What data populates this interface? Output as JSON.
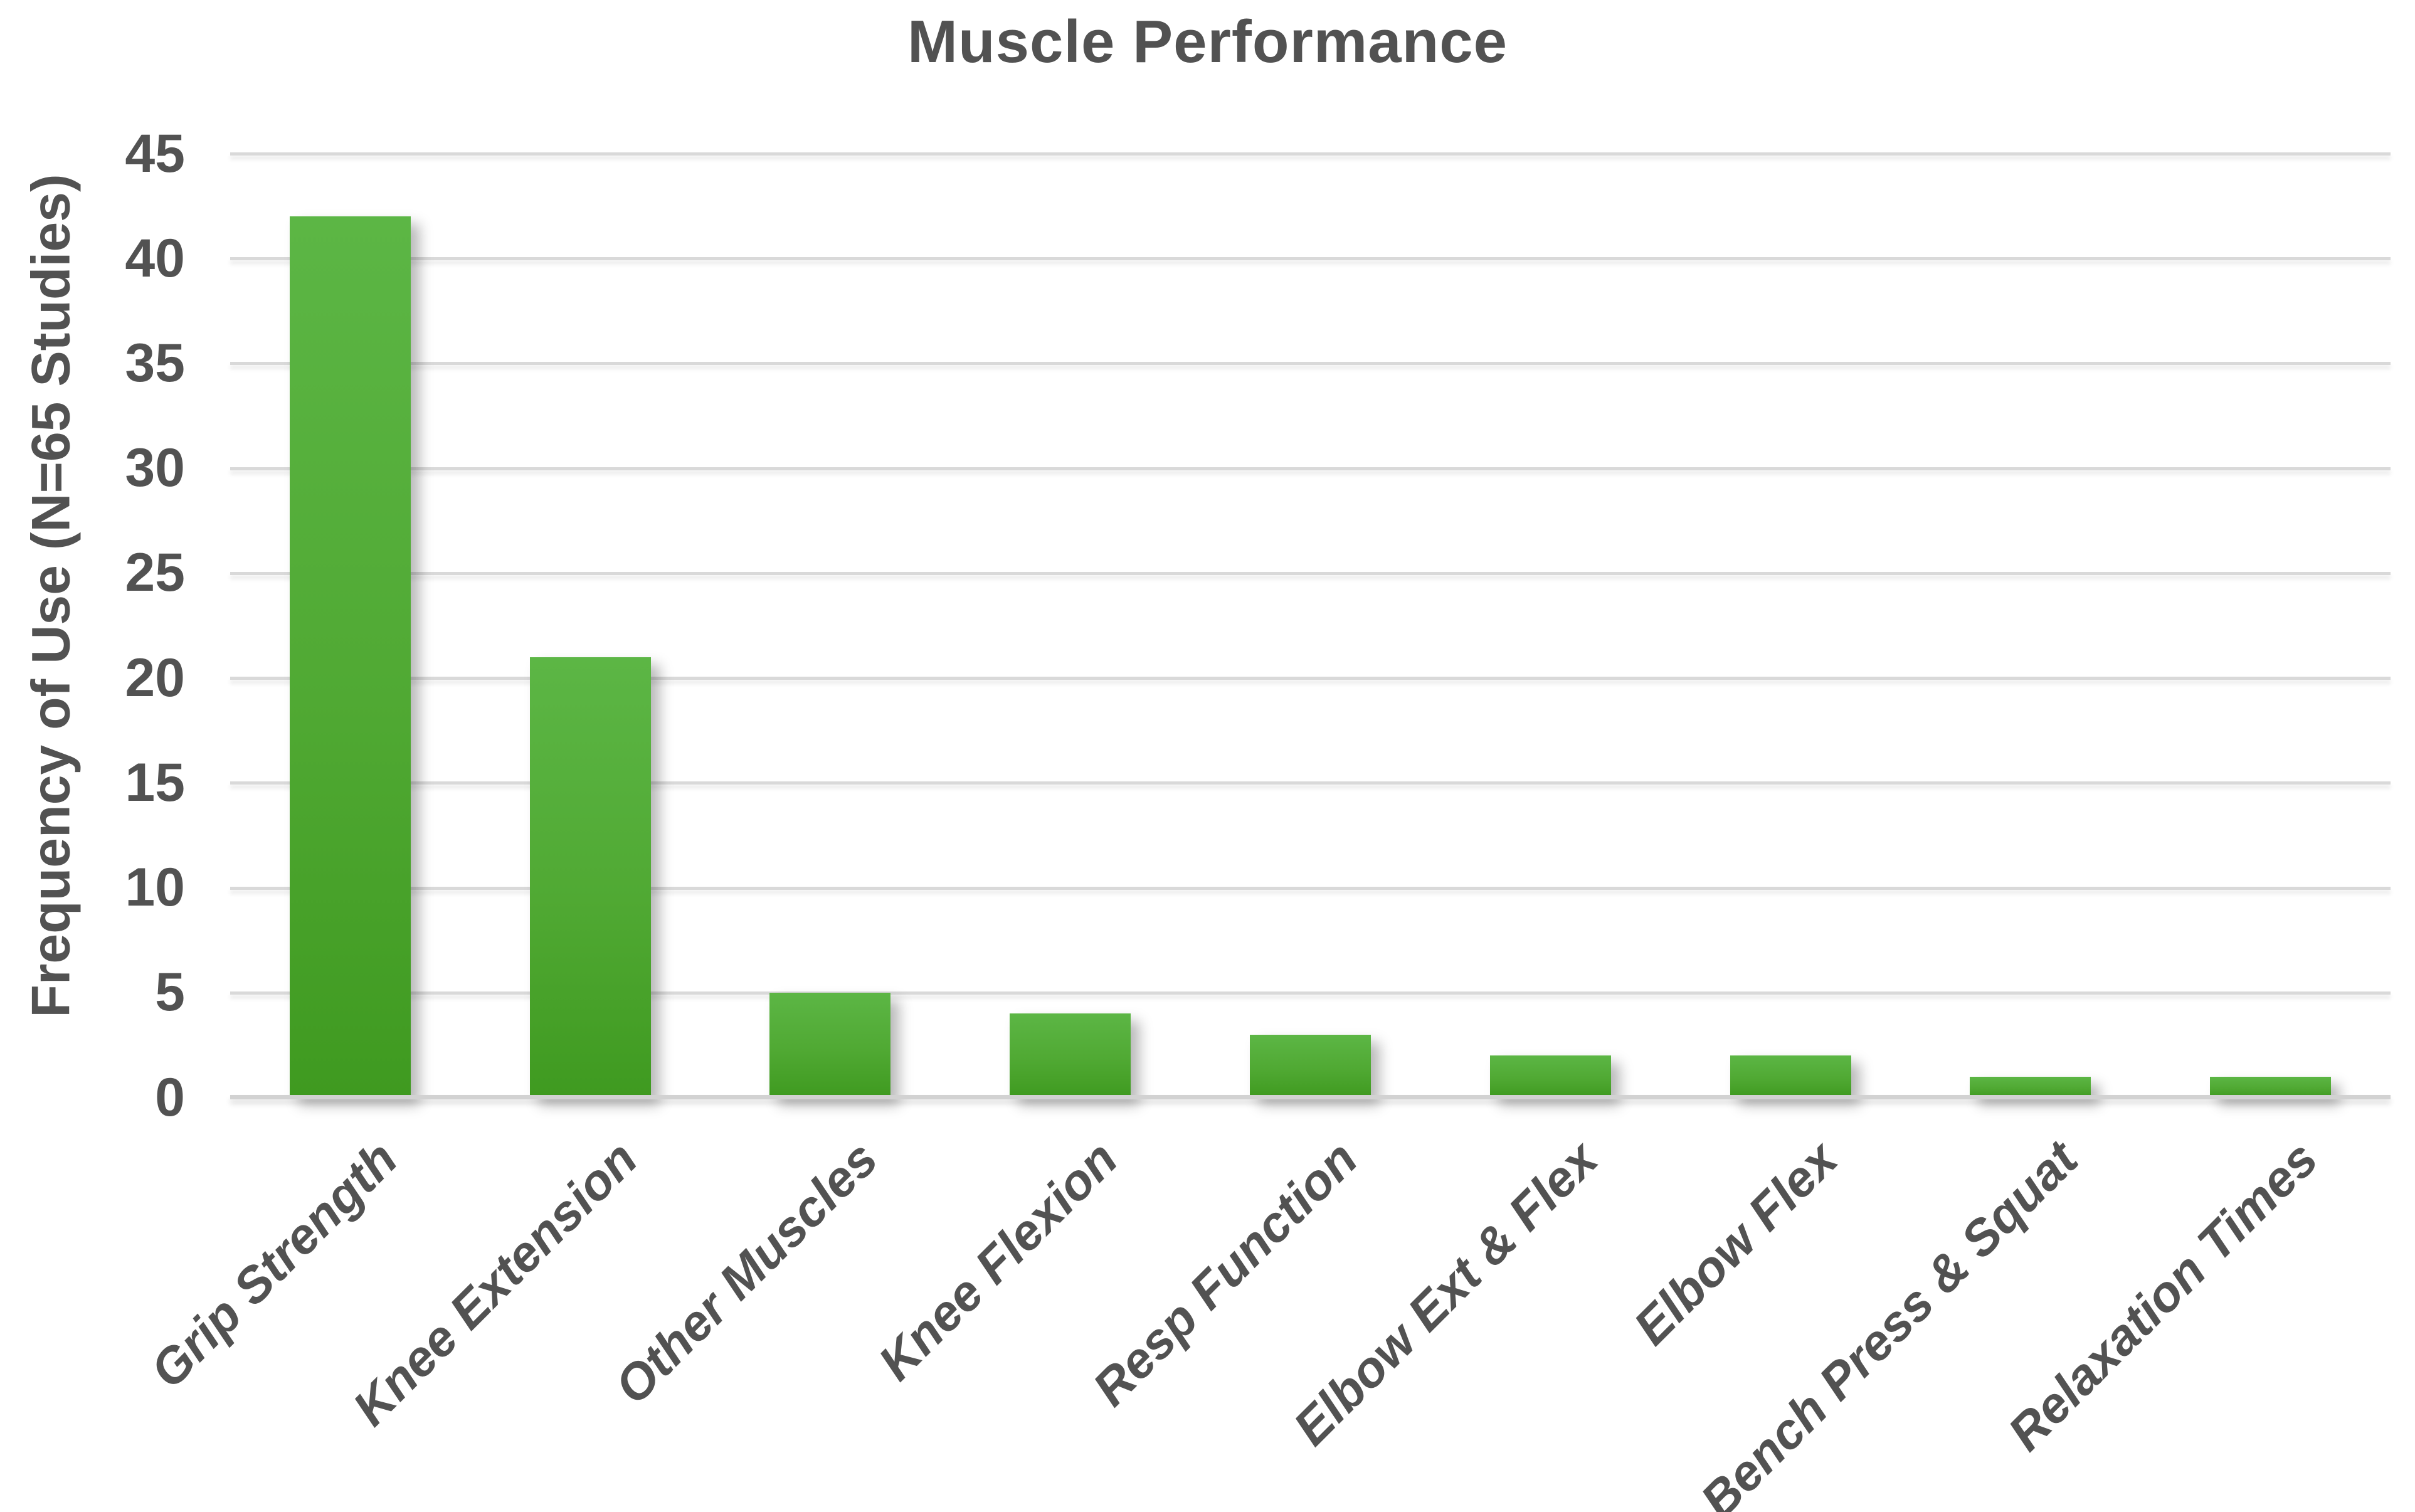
{
  "chart_data": {
    "type": "bar",
    "title": "Muscle Performance",
    "ylabel": "Frequency of Use (N=65 Studies)",
    "xlabel": "",
    "categories": [
      "Grip Strength",
      "Knee Extension",
      "Other Muscles",
      "Knee Flexion",
      "Resp Function",
      "Elbow Ext & Flex",
      "Elbow Flex",
      "Bench Press & Squat",
      "Relaxation Times"
    ],
    "values": [
      42,
      21,
      5,
      4,
      3,
      2,
      2,
      1,
      1
    ],
    "ylim": [
      0,
      45
    ],
    "ytick_step": 5,
    "yticks": [
      0,
      5,
      10,
      15,
      20,
      25,
      30,
      35,
      40,
      45
    ],
    "grid": true,
    "legend_position": "none",
    "colors": {
      "bar_gradient_top": "#5cb645",
      "bar_gradient_bottom": "#3f9a20",
      "gridline": "#d9d9d9",
      "axis_line": "#d2d2d2",
      "text": "#525252",
      "background": "#ffffff"
    }
  }
}
